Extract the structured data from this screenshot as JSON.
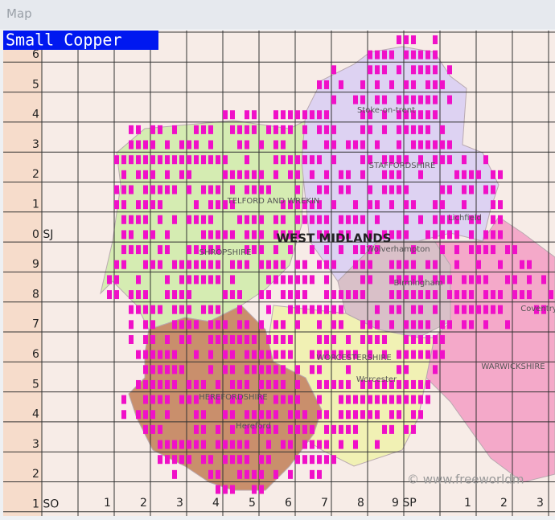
{
  "window_title": "Map",
  "species": "Small Copper",
  "row_labels": [
    "6",
    "5",
    "4",
    "3",
    "2",
    "1",
    "0 SJ",
    "9",
    "8",
    "7",
    "6",
    "5",
    "4",
    "3",
    "2",
    "1 SO"
  ],
  "column_labels": [
    "1",
    "2",
    "3",
    "4",
    "5",
    "6",
    "7",
    "8",
    "9 SP",
    "1",
    "2",
    "3"
  ],
  "map_labels": [
    "Stoke-on-trent",
    "STAFFORDSHIRE",
    "TELFORD AND WREKIN",
    "WEST MIDLANDS",
    "SHROPSHIRE",
    "Wolverhampton",
    "Birmingham",
    "Lichfield",
    "Coventry",
    "WORCESTERSHIRE",
    "Worcester",
    "WARWICKSHIRE",
    "HEREFORDSHIRE",
    "Hereford",
    "© www.freeworldm"
  ]
}
